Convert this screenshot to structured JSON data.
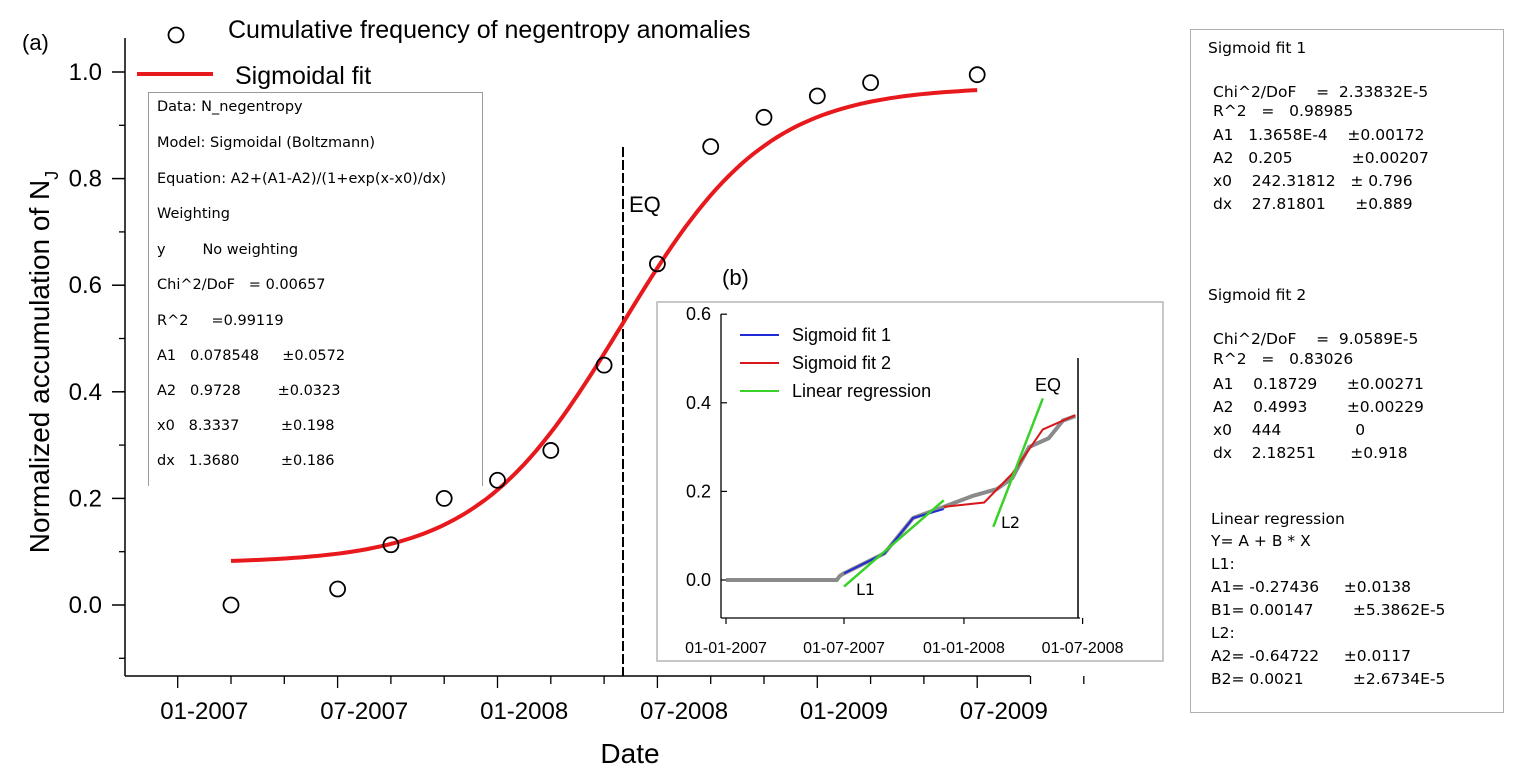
{
  "panel_a_label": "(a)",
  "panel_b_label": "(b)",
  "main_chart": {
    "ylabel_main": "Normalized accumulation of N",
    "ylabel_sub": "J",
    "xlabel": "Date",
    "legend": {
      "circles": "Cumulative frequency of negentropy anomalies",
      "line": "Sigmoidal fit"
    },
    "eq_label": "EQ",
    "y_ticks": [
      "0.0",
      "0.2",
      "0.4",
      "0.6",
      "0.8",
      "1.0"
    ],
    "x_ticks": [
      "01-2007",
      "07-2007",
      "01-2008",
      "07-2008",
      "01-2009",
      "07-2009"
    ]
  },
  "stats_a": [
    "Data: N_negentropy",
    "Model: Sigmoidal (Boltzmann)",
    "Equation: A2+(A1-A2)/(1+exp(x-x0)/dx)",
    "Weighting",
    "y        No weighting",
    "Chi^2/DoF   = 0.00657",
    "R^2     =0.99119",
    "A1   0.078548     ±0.0572",
    "A2   0.9728        ±0.0323",
    "x0   8.3337         ±0.198",
    "dx   1.3680         ±0.186"
  ],
  "inset": {
    "legend": [
      "Sigmoid fit 1",
      "Sigmoid fit 2",
      "Linear regression"
    ],
    "eq_label": "EQ",
    "y_ticks": [
      "0.0",
      "0.2",
      "0.4",
      "0.6"
    ],
    "x_ticks": [
      "01-01-2007",
      "01-07-2007",
      "01-01-2008",
      "01-07-2008"
    ],
    "l1_label": "L1",
    "l2_label": "L2"
  },
  "right_panel": {
    "fit1_title": "Sigmoid fit 1",
    "fit1": [
      "Chi^2/DoF    =  2.33832E-5",
      "R^2   =   0.98985",
      "A1   1.3658E-4    ±0.00172",
      "A2   0.205            ±0.00207",
      "x0    242.31812   ± 0.796",
      "dx    27.81801      ±0.889"
    ],
    "fit2_title": "Sigmoid fit 2",
    "fit2": [
      "Chi^2/DoF    =  9.0589E-5",
      "R^2   =   0.83026",
      "A1    0.18729      ±0.00271",
      "A2    0.4993        ±0.00229",
      "x0    444               0",
      "dx    2.18251       ±0.918"
    ],
    "lin_title": "Linear regression",
    "lin": [
      "Y= A + B * X",
      "L1:",
      "A1= -0.27436     ±0.0138",
      "B1= 0.00147        ±5.3862E-5",
      "L2:",
      "A2= -0.64722     ±0.0117",
      "B2= 0.0021          ±2.6734E-5"
    ]
  },
  "colors": {
    "fit": "#e8191d",
    "sigmoid1": "#1f2bd6",
    "sigmoid2": "#d9161b",
    "linreg": "#39d12a",
    "data_grey": "#8a8a8a"
  },
  "chart_data": [
    {
      "type": "scatter",
      "title": "",
      "xlabel": "Date",
      "ylabel": "Normalized accumulation of NJ",
      "x_unit": "month",
      "ylim": [
        -0.13,
        1.03
      ],
      "series": [
        {
          "name": "Cumulative frequency of negentropy anomalies",
          "x": [
            "2007-03",
            "2007-07",
            "2007-09",
            "2007-11",
            "2008-01",
            "2008-03",
            "2008-05",
            "2008-07",
            "2008-09",
            "2008-11",
            "2009-01",
            "2009-03",
            "2009-07"
          ],
          "y": [
            0.0,
            0.03,
            0.113,
            0.2,
            0.234,
            0.29,
            0.45,
            0.64,
            0.86,
            0.915,
            0.955,
            0.98,
            0.995
          ]
        },
        {
          "name": "Sigmoidal fit",
          "style": "line",
          "model": "Boltzmann",
          "A1": 0.078548,
          "A2": 0.9728,
          "x0": 8.3337,
          "dx": 1.368,
          "x_range": [
            "2007-03",
            "2009-07"
          ]
        }
      ],
      "vline": {
        "label": "EQ",
        "x": "2008-06"
      }
    },
    {
      "type": "line",
      "title": "",
      "xlabel": "",
      "ylabel": "",
      "ylim": [
        -0.08,
        0.63
      ],
      "x_ticks": [
        "01-01-2007",
        "01-07-2007",
        "01-01-2008",
        "01-07-2008"
      ],
      "series": [
        {
          "name": "Sigmoid fit 1",
          "x": [
            "2007-07-01",
            "2007-09-01",
            "2007-10-15",
            "2007-12-01"
          ],
          "y": [
            0.015,
            0.06,
            0.14,
            0.16
          ]
        },
        {
          "name": "Sigmoid fit 2",
          "x": [
            "2007-12-01",
            "2008-02-01",
            "2008-03-15",
            "2008-05-01",
            "2008-06-20"
          ],
          "y": [
            0.165,
            0.175,
            0.24,
            0.34,
            0.372
          ]
        },
        {
          "name": "Linear regression",
          "x": [
            "2007-07-01",
            "2007-12-01"
          ],
          "y": [
            -0.015,
            0.18
          ]
        },
        {
          "name": "Linear regression",
          "x": [
            "2008-02-15",
            "2008-05-01"
          ],
          "y": [
            0.12,
            0.41
          ]
        }
      ],
      "vline": {
        "label": "EQ",
        "x": "2008-06-20"
      }
    }
  ]
}
